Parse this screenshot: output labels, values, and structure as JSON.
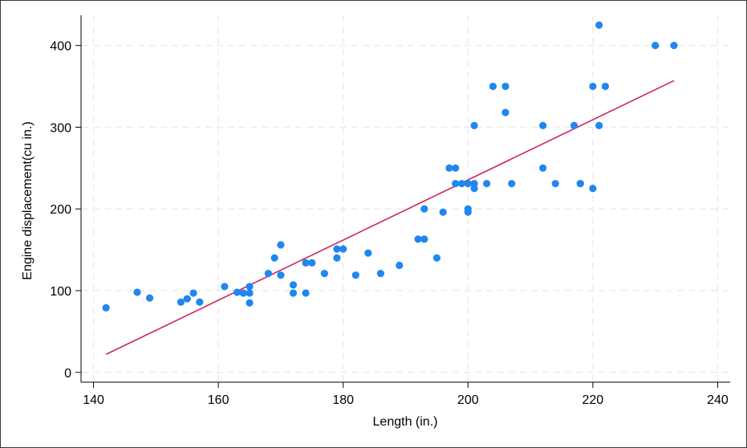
{
  "chart_data": {
    "type": "scatter",
    "title": "",
    "xlabel": "Length (in.)",
    "ylabel": "Engine displacement(cu in.)",
    "xlim": [
      138,
      242
    ],
    "ylim": [
      -12,
      437
    ],
    "xticks": [
      140,
      160,
      180,
      200,
      220,
      240
    ],
    "yticks": [
      0,
      100,
      200,
      300,
      400
    ],
    "grid": true,
    "legend": "none",
    "colors": {
      "points": "#1f87f0",
      "fit_line": "#d0245e"
    },
    "series": [
      {
        "type": "scatter",
        "points": [
          [
            142,
            79
          ],
          [
            147,
            98
          ],
          [
            149,
            91
          ],
          [
            154,
            86
          ],
          [
            155,
            90
          ],
          [
            156,
            97
          ],
          [
            157,
            86
          ],
          [
            161,
            105
          ],
          [
            163,
            98
          ],
          [
            164,
            97
          ],
          [
            165,
            105
          ],
          [
            165,
            97
          ],
          [
            165,
            85
          ],
          [
            168,
            121
          ],
          [
            169,
            140
          ],
          [
            170,
            156
          ],
          [
            170,
            119
          ],
          [
            172,
            107
          ],
          [
            172,
            97
          ],
          [
            174,
            134
          ],
          [
            174,
            97
          ],
          [
            175,
            134
          ],
          [
            177,
            121
          ],
          [
            179,
            151
          ],
          [
            179,
            140
          ],
          [
            180,
            151
          ],
          [
            182,
            119
          ],
          [
            184,
            146
          ],
          [
            186,
            121
          ],
          [
            189,
            131
          ],
          [
            192,
            163
          ],
          [
            193,
            163
          ],
          [
            193,
            200
          ],
          [
            195,
            140
          ],
          [
            196,
            196
          ],
          [
            197,
            250
          ],
          [
            198,
            250
          ],
          [
            198,
            231
          ],
          [
            199,
            231
          ],
          [
            200,
            231
          ],
          [
            200,
            200
          ],
          [
            200,
            196
          ],
          [
            201,
            231
          ],
          [
            201,
            225
          ],
          [
            201,
            302
          ],
          [
            203,
            231
          ],
          [
            204,
            350
          ],
          [
            206,
            350
          ],
          [
            206,
            318
          ],
          [
            207,
            231
          ],
          [
            212,
            302
          ],
          [
            212,
            250
          ],
          [
            214,
            231
          ],
          [
            217,
            302
          ],
          [
            218,
            231
          ],
          [
            218,
            231
          ],
          [
            220,
            350
          ],
          [
            220,
            225
          ],
          [
            221,
            425
          ],
          [
            221,
            302
          ],
          [
            222,
            350
          ],
          [
            230,
            400
          ],
          [
            233,
            400
          ]
        ]
      },
      {
        "type": "line",
        "points": [
          [
            142,
            22
          ],
          [
            233,
            357
          ]
        ]
      }
    ]
  }
}
